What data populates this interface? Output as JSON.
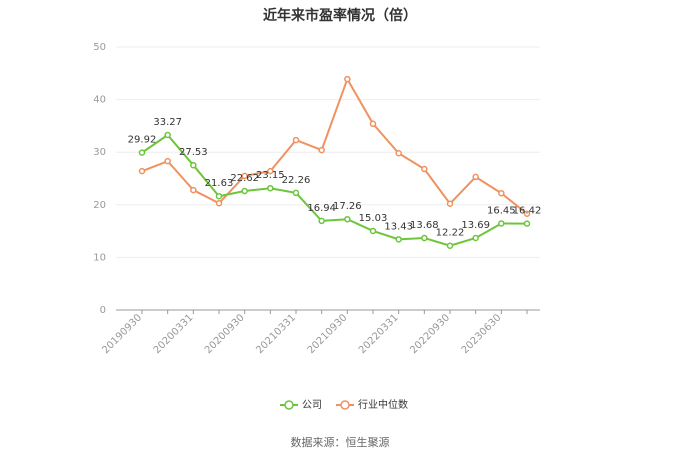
{
  "chart_data": {
    "type": "line",
    "title": "近年来市盈率情况（倍）",
    "categories": [
      "20190930",
      null,
      "20200331",
      null,
      "20200930",
      null,
      "20210331",
      null,
      "20210930",
      null,
      "20220331",
      null,
      "20220930",
      null,
      "20230630",
      null
    ],
    "series": [
      {
        "name": "公司",
        "color": "#6cc53a",
        "values": [
          29.92,
          33.27,
          27.53,
          21.63,
          22.62,
          23.15,
          22.26,
          16.94,
          17.26,
          15.03,
          13.43,
          13.68,
          12.22,
          13.69,
          16.45,
          16.42
        ]
      },
      {
        "name": "行业中位数",
        "color": "#f0925f",
        "values": [
          26.4,
          28.3,
          22.8,
          20.3,
          25.5,
          26.4,
          32.3,
          30.4,
          43.9,
          35.4,
          29.8,
          26.8,
          20.2,
          25.3,
          22.2,
          18.3
        ]
      }
    ],
    "ylim": [
      0,
      50
    ],
    "yticks": [
      0,
      10,
      20,
      30,
      40,
      50
    ],
    "grid": true,
    "source": "数据来源：恒生聚源"
  }
}
